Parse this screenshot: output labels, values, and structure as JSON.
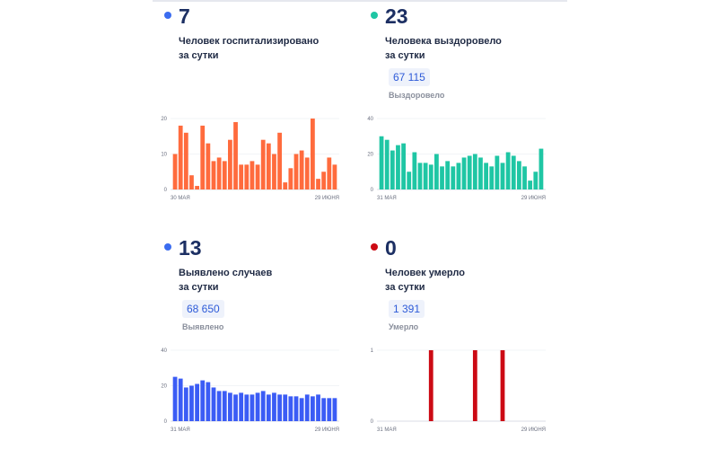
{
  "panels": [
    {
      "value": "7",
      "desc_line1": "Человек госпитализировано",
      "desc_line2": "за сутки",
      "total": "",
      "total_label": "",
      "accent": "#ff6b3d",
      "dot_color": "#3b6cf0"
    },
    {
      "value": "23",
      "desc_line1": "Человека выздоровело",
      "desc_line2": "за сутки",
      "total": "67 115",
      "total_label": "Выздоровело",
      "accent": "#1fc6a4",
      "dot_color": "#1fc6a4"
    },
    {
      "value": "13",
      "desc_line1": "Выявлено случаев",
      "desc_line2": "за сутки",
      "total": "68 650",
      "total_label": "Выявлено",
      "accent": "#3b5cf5",
      "dot_color": "#3b6cf0"
    },
    {
      "value": "0",
      "desc_line1": "Человек умерло",
      "desc_line2": "за сутки",
      "total": "1 391",
      "total_label": "Умерло",
      "accent": "#cc0a14",
      "dot_color": "#cc0a14"
    }
  ],
  "chart_data": [
    {
      "type": "bar",
      "ylim": [
        0,
        20
      ],
      "yticks": [
        "0",
        "10",
        "20"
      ],
      "x_start_label": "30 мая",
      "x_end_label": "29 июня",
      "values": [
        10,
        18,
        16,
        4,
        1,
        18,
        13,
        8,
        9,
        8,
        14,
        19,
        7,
        7,
        8,
        7,
        14,
        13,
        10,
        16,
        2,
        6,
        10,
        11,
        9,
        20,
        3,
        5,
        9,
        7
      ]
    },
    {
      "type": "bar",
      "ylim": [
        0,
        40
      ],
      "yticks": [
        "0",
        "20",
        "40"
      ],
      "x_start_label": "31 мая",
      "x_end_label": "29 июня",
      "values": [
        30,
        28,
        22,
        25,
        26,
        10,
        21,
        15,
        15,
        14,
        20,
        13,
        16,
        13,
        15,
        18,
        19,
        20,
        18,
        15,
        13,
        19,
        15,
        21,
        19,
        16,
        13,
        5,
        10,
        23
      ]
    },
    {
      "type": "bar",
      "ylim": [
        0,
        40
      ],
      "yticks": [
        "0",
        "20",
        "40"
      ],
      "x_start_label": "31 мая",
      "x_end_label": "29 июня",
      "values": [
        25,
        24,
        19,
        20,
        21,
        23,
        22,
        19,
        17,
        17,
        16,
        15,
        16,
        15,
        15,
        16,
        17,
        15,
        16,
        15,
        15,
        14,
        14,
        13,
        15,
        14,
        15,
        13,
        13,
        13
      ]
    },
    {
      "type": "bar",
      "ylim": [
        0,
        1
      ],
      "yticks": [
        "0",
        "1"
      ],
      "x_start_label": "31 мая",
      "x_end_label": "29 июня",
      "values": [
        0,
        0,
        0,
        0,
        0,
        0,
        0,
        0,
        0,
        1,
        0,
        0,
        0,
        0,
        0,
        0,
        0,
        1,
        0,
        0,
        0,
        0,
        1,
        0,
        0,
        0,
        0,
        0,
        0,
        0
      ]
    }
  ]
}
